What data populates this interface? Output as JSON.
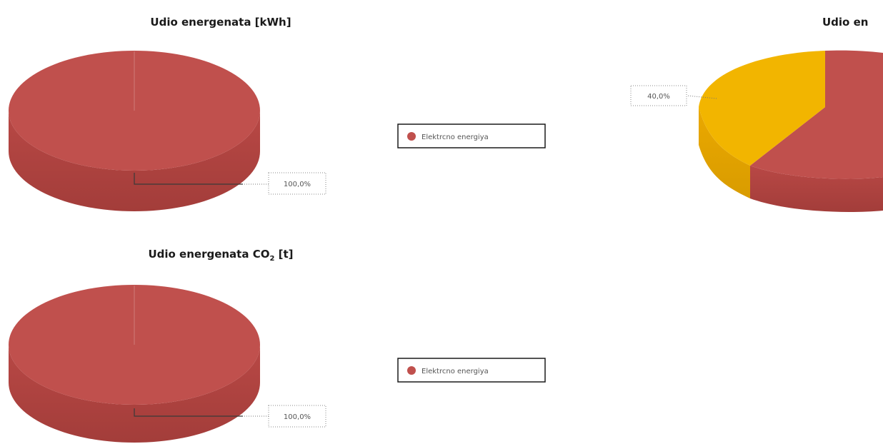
{
  "colors": {
    "red": "#c0504d",
    "yellow": "#f2b500"
  },
  "legend_label": "Elektrcno energiya",
  "chart_data": [
    {
      "type": "pie",
      "title": "Udio energenata [kWh]",
      "categories": [
        "Elektrcno energiya"
      ],
      "values": [
        100.0
      ],
      "data_labels": [
        "100,0%"
      ],
      "colors": [
        "#c0504d"
      ]
    },
    {
      "type": "pie",
      "title": "Udio energenata CO",
      "title_sub": "2",
      "title_tail": " [t]",
      "categories": [
        "Elektrcno energiya"
      ],
      "values": [
        100.0
      ],
      "data_labels": [
        "100,0%"
      ],
      "colors": [
        "#c0504d"
      ]
    },
    {
      "type": "pie",
      "title": "Udio en",
      "categories": [
        "",
        ""
      ],
      "values": [
        60.0,
        40.0
      ],
      "data_labels": [
        "",
        "40,0%"
      ],
      "colors": [
        "#c0504d",
        "#f2b500"
      ]
    }
  ]
}
